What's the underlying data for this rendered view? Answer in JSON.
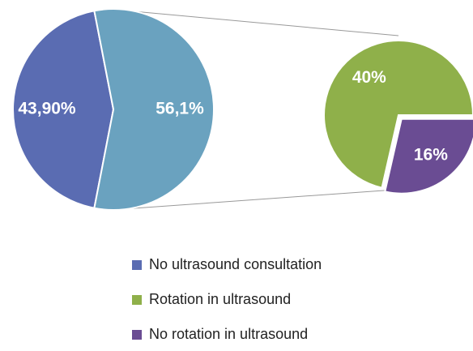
{
  "chart_data": {
    "type": "pie-of-pie",
    "categories": [
      "No ultrasound consultation",
      null
    ],
    "values": [
      43.9,
      56.1
    ],
    "value_labels": [
      "43,90%",
      "56,1%"
    ],
    "colors": [
      "#5a6cb2",
      "#6aa2bf"
    ],
    "secondary": {
      "categories": [
        "Rotation in ultrasound",
        "No rotation in ultrasound"
      ],
      "values": [
        40,
        16
      ],
      "value_labels": [
        "40%",
        "16%"
      ],
      "colors": [
        "#8fb04a",
        "#6a4c93"
      ]
    }
  }
}
